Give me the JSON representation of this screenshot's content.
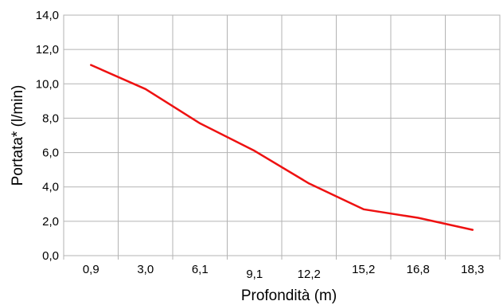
{
  "chart_data": {
    "type": "line",
    "title": "",
    "xlabel": "Profondità (m)",
    "ylabel": "Portata* (l/min)",
    "categories": [
      "0,9",
      "3,0",
      "6,1",
      "9,1",
      "12,2",
      "15,2",
      "16,8",
      "18,3"
    ],
    "series": [
      {
        "values": [
          11.1,
          9.7,
          7.7,
          6.1,
          4.2,
          2.7,
          2.2,
          1.5
        ]
      }
    ],
    "ylim": [
      0,
      14
    ],
    "yticks": [
      "0,0",
      "2,0",
      "4,0",
      "6,0",
      "8,0",
      "10,0",
      "12,0",
      "14,0"
    ],
    "grid": true,
    "legend": "none",
    "colors": {
      "line": "#ee1111",
      "grid": "#b3b3b3",
      "frame": "#b3b3b3"
    }
  }
}
